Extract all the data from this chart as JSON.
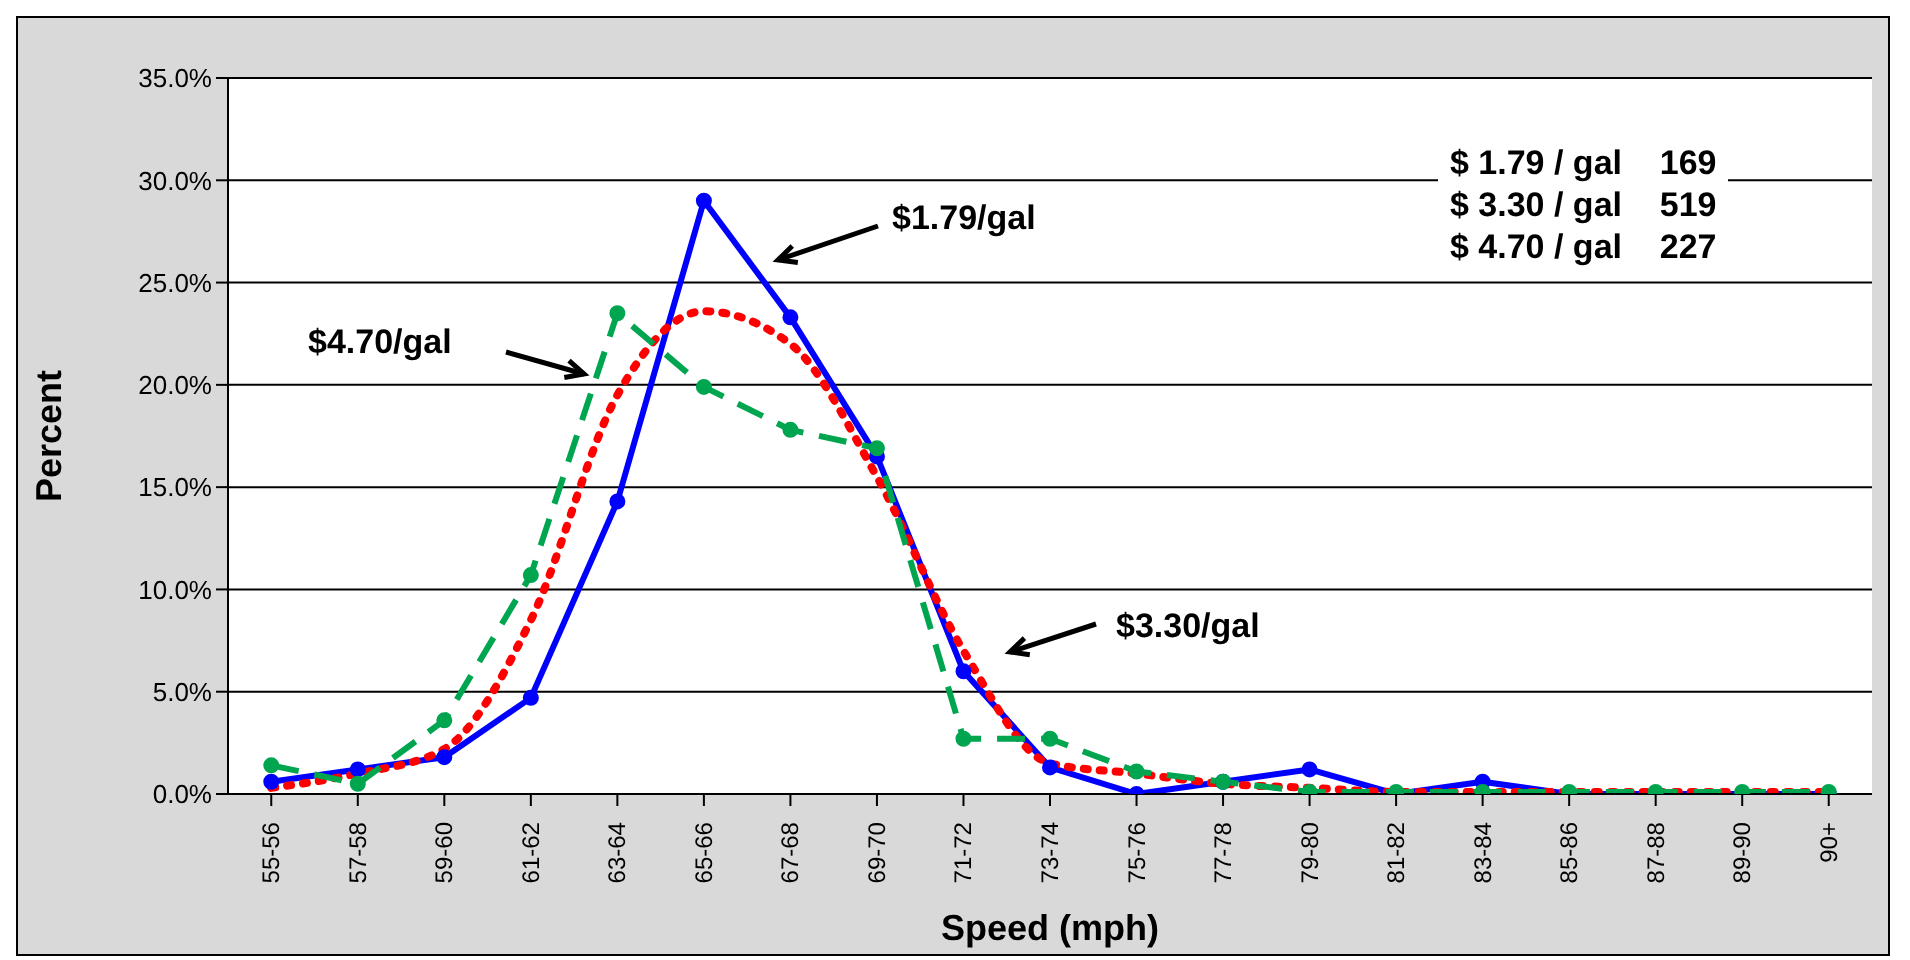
{
  "chart_data": {
    "type": "line",
    "xlabel": "Speed (mph)",
    "ylabel": "Percent",
    "categories": [
      "55-56",
      "57-58",
      "59-60",
      "61-62",
      "63-64",
      "65-66",
      "67-68",
      "69-70",
      "71-72",
      "73-74",
      "75-76",
      "77-78",
      "79-80",
      "81-82",
      "83-84",
      "85-86",
      "87-88",
      "89-90",
      "90+"
    ],
    "series": [
      {
        "color": "#0000ff",
        "line_style": "solid",
        "marker": "circle",
        "values": [
          0.6,
          1.2,
          1.8,
          4.7,
          14.3,
          29.0,
          23.3,
          16.5,
          6.0,
          1.3,
          0.0,
          0.6,
          1.2,
          0.0,
          0.6,
          0.0,
          0.0,
          0.0,
          0.0
        ]
      },
      {
        "color": "#ff0000",
        "line_style": "dotted",
        "marker": "none",
        "values": [
          0.3,
          1.0,
          2.2,
          8.5,
          19.5,
          23.6,
          22.0,
          15.5,
          7.0,
          1.5,
          1.0,
          0.5,
          0.3,
          0.1,
          0.1,
          0.1,
          0.1,
          0.1,
          0.1
        ]
      },
      {
        "color": "#00a550",
        "line_style": "dashed",
        "marker": "circle",
        "values": [
          1.4,
          0.5,
          3.6,
          10.7,
          23.5,
          19.9,
          17.8,
          16.9,
          2.7,
          2.7,
          1.1,
          0.6,
          0.1,
          0.1,
          0.1,
          0.1,
          0.1,
          0.1,
          0.1
        ]
      }
    ],
    "ylim": [
      0,
      35
    ],
    "yticks": [
      {
        "value": 0,
        "label": "0.0%"
      },
      {
        "value": 5,
        "label": "5.0%"
      },
      {
        "value": 10,
        "label": "10.0%"
      },
      {
        "value": 15,
        "label": "15.0%"
      },
      {
        "value": 20,
        "label": "20.0%"
      },
      {
        "value": 25,
        "label": "25.0%"
      },
      {
        "value": 30,
        "label": "30.0%"
      },
      {
        "value": 35,
        "label": "35.0%"
      }
    ],
    "grid": "y",
    "annotations": [
      "$1.79/gal",
      "$4.70/gal",
      "$3.30/gal",
      "$ 1.79 / gal    169",
      "$ 3.30 / gal    519",
      "$ 4.70 / gal    227"
    ]
  }
}
